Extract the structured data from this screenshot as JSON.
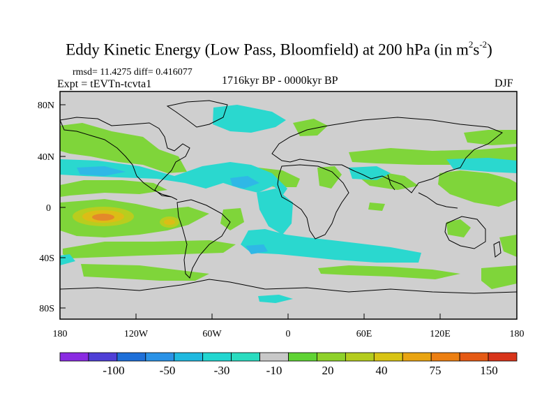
{
  "title": {
    "main": "Eddy Kinetic Energy (Low Pass, Bloomfield) at 200 hPa (in m",
    "sup1": "2",
    "mid": "s",
    "sup2": "-2",
    "end": ")"
  },
  "stats": "rmsd= 11.4275 diff= 0.416077",
  "experiment": "Expt = tEVTn-tcvta1",
  "period": "1716kyr BP - 0000kyr BP",
  "season": "DJF",
  "lat_ticks": [
    "80N",
    "40N",
    "0",
    "40S",
    "80S"
  ],
  "lon_ticks": [
    "180",
    "120W",
    "60W",
    "0",
    "60E",
    "120E",
    "180"
  ],
  "colorbar": {
    "labels": [
      "-100",
      "-50",
      "-30",
      "-10",
      "20",
      "40",
      "75",
      "150"
    ],
    "colors": [
      "#8a2be2",
      "#4f3fd6",
      "#1e6fd8",
      "#2a92e6",
      "#1fb9e0",
      "#22d6d0",
      "#2adcc0",
      "#c8c8c8",
      "#5fd334",
      "#8ed12a",
      "#b4cc1e",
      "#d8c414",
      "#e9a412",
      "#ec7f12",
      "#e55a15",
      "#d8341a"
    ]
  },
  "colors": {
    "neutral": "#cfcfcf",
    "green": "#7fd53a",
    "yellow": "#d4c41c",
    "orange": "#e0902a",
    "cyan": "#2ad8cf",
    "blue": "#2fb8e6"
  }
}
